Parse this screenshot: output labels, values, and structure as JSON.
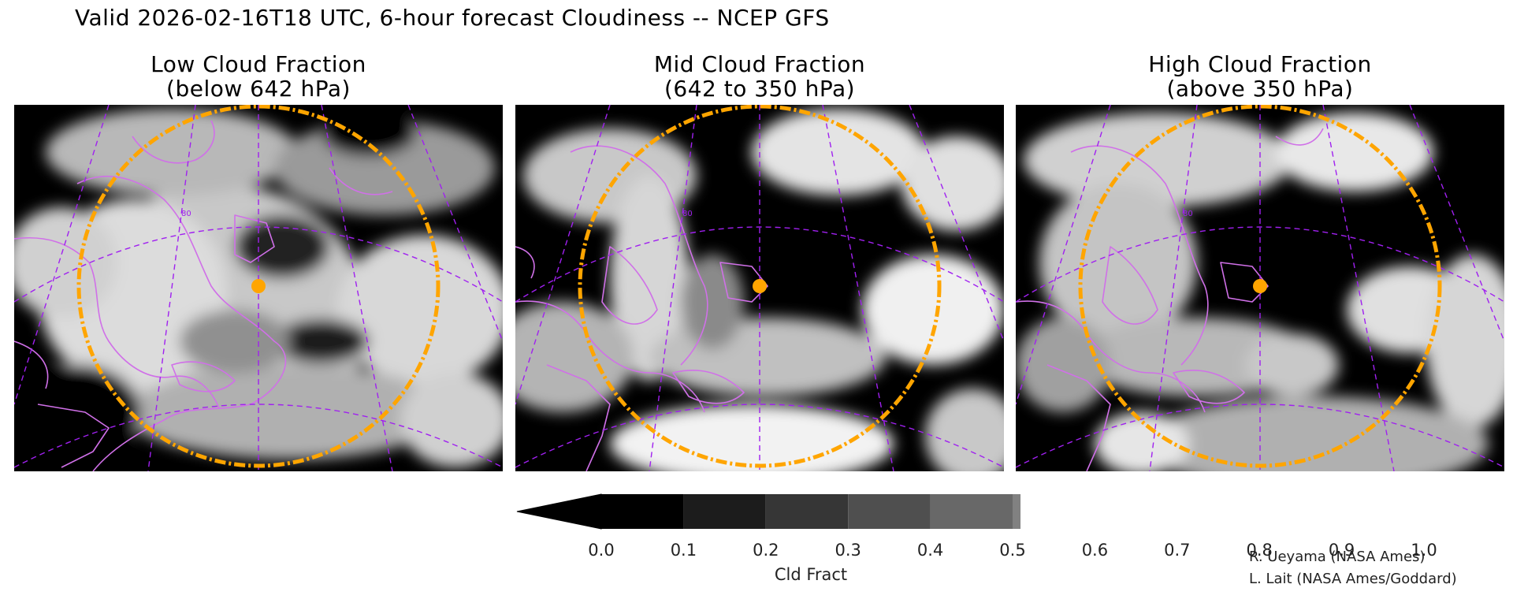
{
  "title": "Valid 2026-02-16T18 UTC, 6-hour forecast Cloudiness -- NCEP GFS",
  "panels": [
    {
      "title_line1": "Low Cloud Fraction",
      "title_line2": "(below 642 hPa)",
      "grid_label": "80"
    },
    {
      "title_line1": "Mid Cloud Fraction",
      "title_line2": "(642 to 350 hPa)",
      "grid_label": "80"
    },
    {
      "title_line1": "High Cloud Fraction",
      "title_line2": "(above 350 hPa)",
      "grid_label": "80"
    }
  ],
  "colorbar": {
    "label": "Cld Fract",
    "ticks": [
      "0.0",
      "0.1",
      "0.2",
      "0.3",
      "0.4",
      "0.5",
      "0.6",
      "0.7",
      "0.8",
      "0.9",
      "1.0"
    ],
    "colors": [
      "#000000",
      "#1c1c1c",
      "#363636",
      "#4f4f4f",
      "#686868",
      "#818181",
      "#9a9a9a",
      "#b3b3b3",
      "#cccccc",
      "#e3e3e3",
      "#ffffff",
      "#ffffff"
    ]
  },
  "credits": [
    "R. Ueyama (NASA Ames)",
    "L. Lait (NASA Ames/Goddard)"
  ],
  "colors": {
    "coastline": "#d070e8",
    "grid": "#a020f0",
    "range_ring": "#ffa500",
    "site_marker": "#ffa500"
  }
}
